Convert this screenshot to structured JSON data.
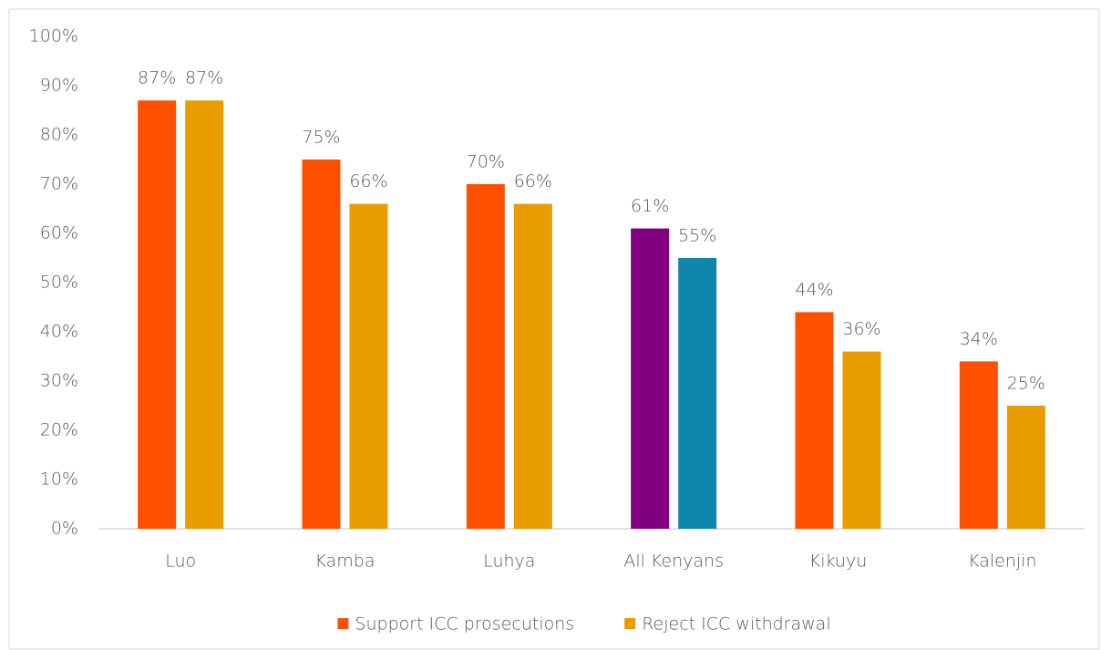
{
  "chart_data": {
    "type": "bar",
    "categories": [
      "Luo",
      "Kamba",
      "Luhya",
      "All Kenyans",
      "Kikuyu",
      "Kalenjin"
    ],
    "series": [
      {
        "name": "Support ICC prosecutions",
        "color": "#ff5000",
        "colors": [
          "#ff5000",
          "#ff5000",
          "#ff5000",
          "#800080",
          "#ff5000",
          "#ff5000"
        ],
        "values": [
          87,
          75,
          70,
          61,
          44,
          34
        ],
        "value_labels": [
          "87%",
          "75%",
          "70%",
          "61%",
          "44%",
          "34%"
        ]
      },
      {
        "name": "Reject ICC withdrawal",
        "color": "#e89c00",
        "colors": [
          "#e89c00",
          "#e89c00",
          "#e89c00",
          "#0e86ab",
          "#e89c00",
          "#e89c00"
        ],
        "values": [
          87,
          66,
          66,
          55,
          36,
          25
        ],
        "value_labels": [
          "87%",
          "66%",
          "66%",
          "55%",
          "36%",
          "25%"
        ]
      }
    ],
    "ylim": [
      0,
      100
    ],
    "yticks": [
      {
        "value": 0,
        "label": "0%"
      },
      {
        "value": 10,
        "label": "10%"
      },
      {
        "value": 20,
        "label": "20%"
      },
      {
        "value": 30,
        "label": "30%"
      },
      {
        "value": 40,
        "label": "40%"
      },
      {
        "value": 50,
        "label": "50%"
      },
      {
        "value": 60,
        "label": "60%"
      },
      {
        "value": 70,
        "label": "70%"
      },
      {
        "value": 80,
        "label": "80%"
      },
      {
        "value": 90,
        "label": "90%"
      },
      {
        "value": 100,
        "label": "100%"
      }
    ],
    "grid": false,
    "legend": "bottom"
  }
}
